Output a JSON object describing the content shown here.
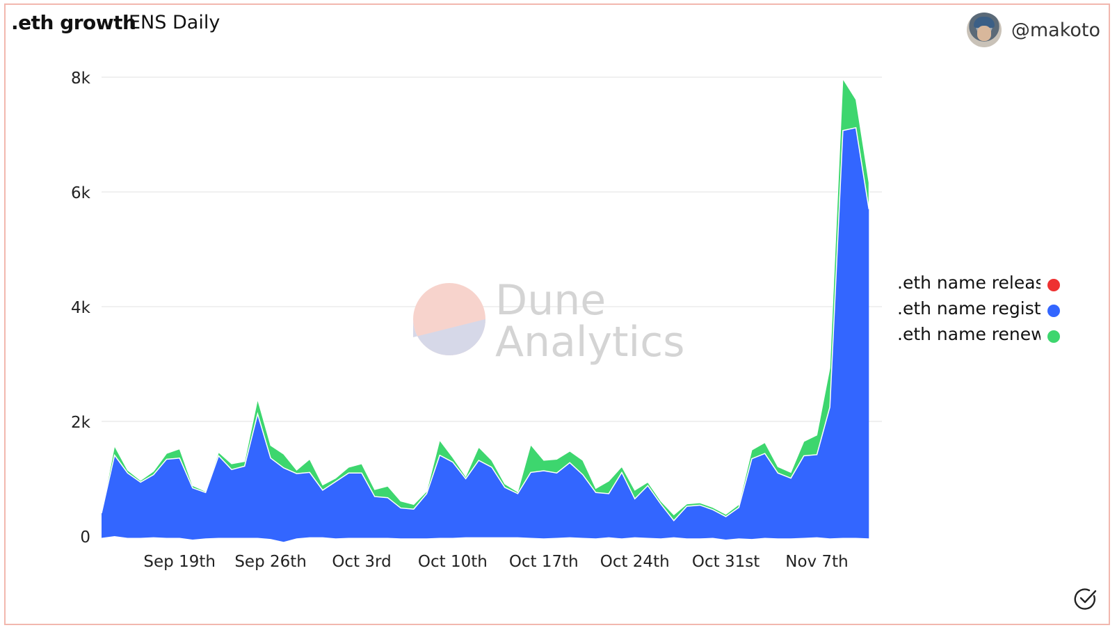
{
  "header": {
    "title": ".eth growth",
    "subtitle": "ENS Daily",
    "username": "@makoto"
  },
  "watermark": {
    "line1": "Dune",
    "line2": "Analytics"
  },
  "colors": {
    "released": "#ee3131",
    "registered": "#3366ff",
    "renewed": "#3dd66e",
    "grid": "#ececec"
  },
  "legend": [
    {
      "label": ".eth name released",
      "color": "#ee3131"
    },
    {
      "label": ".eth name registered",
      "color": "#3366ff"
    },
    {
      "label": ".eth name renewed",
      "color": "#3dd66e"
    }
  ],
  "chart_data": {
    "type": "area",
    "stacked": true,
    "x_start": "2021-09-13",
    "x_end": "2021-11-12",
    "x_ticks": [
      "Sep 19th",
      "Sep 26th",
      "Oct 3rd",
      "Oct 10th",
      "Oct 17th",
      "Oct 24th",
      "Oct 31st",
      "Nov 7th"
    ],
    "x_tick_dates": [
      "2021-09-19",
      "2021-09-26",
      "2021-10-03",
      "2021-10-10",
      "2021-10-17",
      "2021-10-24",
      "2021-10-31",
      "2021-11-07"
    ],
    "y_ticks": [
      "0",
      "2k",
      "4k",
      "6k",
      "8k"
    ],
    "y_tick_values": [
      0,
      2000,
      4000,
      6000,
      8000
    ],
    "ylim": [
      0,
      8000
    ],
    "series": [
      {
        "name": ".eth name released",
        "values": [
          -30,
          0,
          -30,
          -30,
          -20,
          -30,
          -30,
          -60,
          -40,
          -30,
          -30,
          -30,
          -30,
          -50,
          -100,
          -40,
          -20,
          -20,
          -40,
          -30,
          -30,
          -30,
          -30,
          -40,
          -40,
          -40,
          -30,
          -30,
          -20,
          -20,
          -20,
          -20,
          -20,
          -30,
          -40,
          -30,
          -20,
          -30,
          -40,
          -20,
          -40,
          -20,
          -30,
          -40,
          -20,
          -40,
          -40,
          -30,
          -60,
          -40,
          -50,
          -30,
          -40,
          -40,
          -30,
          -20,
          -40,
          -30,
          -30,
          -40
        ]
      },
      {
        "name": ".eth name registered",
        "values": [
          400,
          1410,
          1100,
          940,
          1070,
          1340,
          1360,
          840,
          760,
          1400,
          1160,
          1220,
          2130,
          1360,
          1190,
          1090,
          1110,
          800,
          950,
          1100,
          1100,
          690,
          670,
          490,
          470,
          740,
          1410,
          1290,
          1000,
          1320,
          1200,
          850,
          740,
          1110,
          1140,
          1100,
          1280,
          1070,
          760,
          740,
          1110,
          650,
          880,
          560,
          270,
          520,
          540,
          460,
          340,
          500,
          1350,
          1440,
          1100,
          1010,
          1400,
          1420,
          2250,
          7070,
          7120,
          5700
        ]
      },
      {
        "name": ".eth name renewed",
        "values": [
          0,
          160,
          50,
          30,
          60,
          100,
          160,
          40,
          20,
          60,
          100,
          80,
          250,
          220,
          240,
          60,
          230,
          90,
          60,
          100,
          160,
          120,
          200,
          120,
          80,
          40,
          260,
          80,
          40,
          230,
          120,
          60,
          30,
          480,
          180,
          240,
          200,
          250,
          70,
          220,
          100,
          150,
          60,
          50,
          100,
          40,
          40,
          40,
          40,
          50,
          150,
          190,
          110,
          100,
          250,
          340,
          680,
          900,
          490,
          460
        ]
      }
    ]
  }
}
